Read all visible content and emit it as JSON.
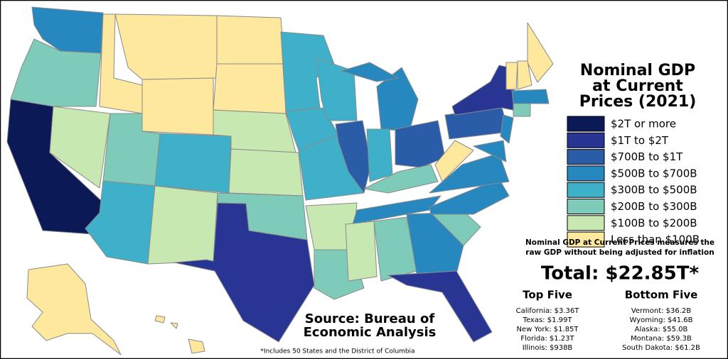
{
  "title": [
    "Nominal GDP",
    "at Current",
    "Prices (2021)"
  ],
  "legend": [
    {
      "label": "$2T or more",
      "color": "#0b1a57"
    },
    {
      "label": "$1T to $2T",
      "color": "#283593"
    },
    {
      "label": "$700B to $1T",
      "color": "#2a5ca8"
    },
    {
      "label": "$500B to $700B",
      "color": "#2788c0"
    },
    {
      "label": "$300B to $500B",
      "color": "#3eb0c9"
    },
    {
      "label": "$200B to $300B",
      "color": "#7ecbb9"
    },
    {
      "label": "$100B to $200B",
      "color": "#c8e8b2"
    },
    {
      "label": "Less than $100B",
      "color": "#fde89e"
    }
  ],
  "note": [
    "Nominal GDP at Current Prices measures the",
    "raw GDP without being adjusted for inflation"
  ],
  "total": "Total: $22.85T*",
  "top_five": {
    "title": "Top Five",
    "items": [
      "California: $3.36T",
      "Texas: $1.99T",
      "New York: $1.85T",
      "Florida: $1.23T",
      "Illinois: $938B"
    ]
  },
  "bottom_five": {
    "title": "Bottom Five",
    "items": [
      "Vermont: $36.2B",
      "Wyoming: $41.6B",
      "Alaska: $55.0B",
      "Montana: $59.3B",
      "South Dakota: $61.2B"
    ]
  },
  "source": [
    "Source: Bureau of",
    "Economic Analysis"
  ],
  "footnote": "*Includes 50 States and the District of Columbia"
}
